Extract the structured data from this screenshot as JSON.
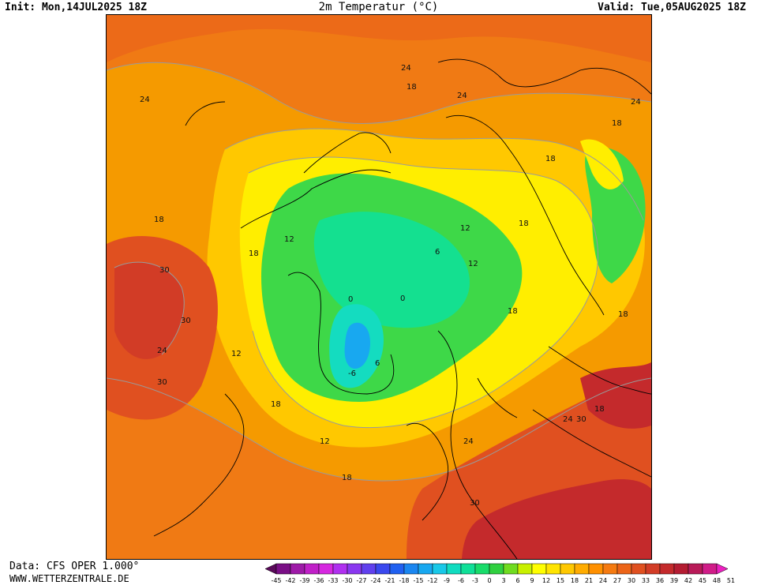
{
  "header": {
    "init": "Init: Mon,14JUL2025 18Z",
    "title": "2m Temperatur (°C)",
    "valid": "Valid: Tue,05AUG2025 18Z"
  },
  "footer": {
    "data_source": "Data: CFS OPER 1.000°",
    "website": "WWW.WETTERZENTRALE.DE"
  },
  "legend": {
    "ticks": [
      "-45",
      "-42",
      "-39",
      "-36",
      "-33",
      "-30",
      "-27",
      "-24",
      "-21",
      "-18",
      "-15",
      "-12",
      "-9",
      "-6",
      "-3",
      "0",
      "3",
      "6",
      "9",
      "12",
      "15",
      "18",
      "21",
      "24",
      "27",
      "30",
      "33",
      "36",
      "39",
      "42",
      "45",
      "48",
      "51"
    ],
    "colors": [
      "#5a0a5a",
      "#7a0f86",
      "#9e1aa8",
      "#c020c8",
      "#d628e0",
      "#b030f0",
      "#8a38f0",
      "#6040ee",
      "#3a48ee",
      "#2060f0",
      "#1a86f0",
      "#18a8f0",
      "#18c8e8",
      "#10dcc0",
      "#10e098",
      "#18dc6a",
      "#30d040",
      "#70dc20",
      "#c8f000",
      "#ffff00",
      "#ffe400",
      "#ffc800",
      "#ffac00",
      "#ff9000",
      "#f57a10",
      "#ec6418",
      "#e05020",
      "#d23c26",
      "#c42a2c",
      "#b41c32",
      "#b81a58",
      "#d01c88",
      "#ec20c0"
    ]
  },
  "map": {
    "contour_labels": [
      {
        "text": "24"
      },
      {
        "text": "18"
      },
      {
        "text": "24"
      },
      {
        "text": "24"
      },
      {
        "text": "18"
      },
      {
        "text": "24"
      },
      {
        "text": "18"
      },
      {
        "text": "12"
      },
      {
        "text": "18"
      },
      {
        "text": "30"
      },
      {
        "text": "30"
      },
      {
        "text": "24"
      },
      {
        "text": "30"
      },
      {
        "text": "12"
      },
      {
        "text": "18"
      },
      {
        "text": "12"
      },
      {
        "text": "18"
      },
      {
        "text": "12"
      },
      {
        "text": "6"
      },
      {
        "text": "12"
      },
      {
        "text": "0"
      },
      {
        "text": "0"
      },
      {
        "text": "-6"
      },
      {
        "text": "6"
      },
      {
        "text": "18"
      },
      {
        "text": "18"
      },
      {
        "text": "18"
      },
      {
        "text": "18"
      },
      {
        "text": "24"
      },
      {
        "text": "30"
      },
      {
        "text": "18"
      },
      {
        "text": "24"
      },
      {
        "text": "30"
      }
    ]
  }
}
